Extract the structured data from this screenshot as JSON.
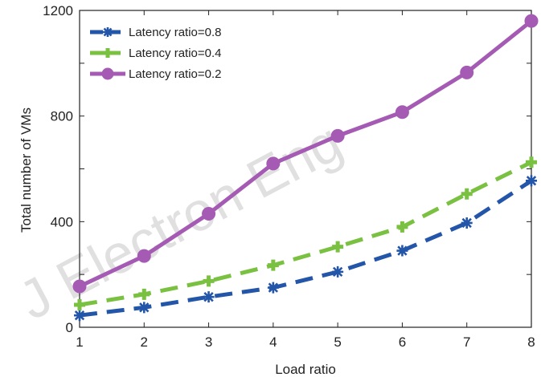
{
  "chart_data": {
    "type": "line",
    "xlabel": "Load ratio",
    "ylabel": "Total number of VMs",
    "x": [
      1,
      2,
      3,
      4,
      5,
      6,
      7,
      8
    ],
    "xlim": [
      1,
      8
    ],
    "ylim": [
      0,
      1200
    ],
    "xticks": [
      "1",
      "2",
      "3",
      "4",
      "5",
      "6",
      "7",
      "8"
    ],
    "yticks": [
      0,
      200,
      400,
      600,
      800,
      1000,
      1200
    ],
    "ytick_labels": [
      "0",
      "",
      "400",
      "",
      "800",
      "",
      "1200"
    ],
    "legend_position": "top-left",
    "grid": false,
    "series": [
      {
        "name": "Latency ratio=0.8",
        "values": [
          45,
          75,
          115,
          150,
          210,
          290,
          395,
          555
        ],
        "color": "#2356a8",
        "style": "dashed",
        "marker": "asterisk"
      },
      {
        "name": "Latency ratio=0.4",
        "values": [
          85,
          125,
          175,
          235,
          305,
          380,
          505,
          625
        ],
        "color": "#7ac142",
        "style": "dashed",
        "marker": "plus"
      },
      {
        "name": "Latency ratio=0.2",
        "values": [
          155,
          270,
          430,
          620,
          725,
          815,
          965,
          1160
        ],
        "color": "#a55bb4",
        "style": "solid",
        "marker": "circle"
      }
    ]
  },
  "watermark": "J Electron Eng"
}
